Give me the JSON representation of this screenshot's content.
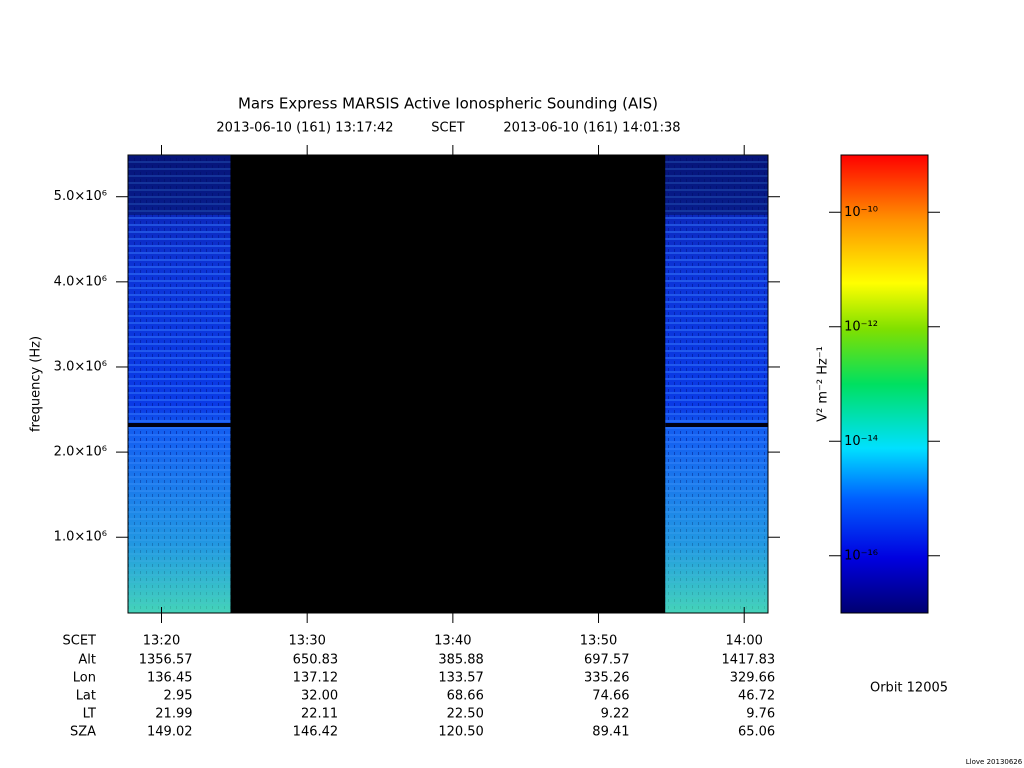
{
  "chart_data": {
    "type": "spectrogram",
    "title": "Mars Express MARSIS Active Ionospheric Sounding (AIS)",
    "start_time": "2013-06-10 (161) 13:17:42",
    "time_system": "SCET",
    "end_time": "2013-06-10 (161) 14:01:38",
    "ylabel": "frequency (Hz)",
    "xlim": [
      "13:17:42",
      "14:01:38"
    ],
    "xticks": [
      "13:20",
      "13:30",
      "13:40",
      "13:50",
      "14:00"
    ],
    "ylim": [
      110000,
      5490000
    ],
    "yticks": [
      {
        "value": 1000000,
        "label": "1.0×10⁶"
      },
      {
        "value": 2000000,
        "label": "2.0×10⁶"
      },
      {
        "value": 3000000,
        "label": "3.0×10⁶"
      },
      {
        "value": 4000000,
        "label": "4.0×10⁶"
      },
      {
        "value": 5000000,
        "label": "5.0×10⁶"
      }
    ],
    "segments": [
      [
        "13:17:42",
        "13:24:44"
      ],
      [
        "13:54:35",
        "14:01:38"
      ]
    ],
    "colorbar": {
      "label": "V² m⁻² Hz⁻¹",
      "log": true,
      "zlim": [
        1e-17,
        1e-09
      ],
      "zticks": [
        {
          "value": 1e-16,
          "label": "10⁻¹⁶"
        },
        {
          "value": 1e-14,
          "label": "10⁻¹⁴"
        },
        {
          "value": 1e-12,
          "label": "10⁻¹²"
        },
        {
          "value": 1e-10,
          "label": "10⁻¹⁰"
        }
      ]
    },
    "ephemeris": {
      "row_label": "SCET",
      "rows": [
        {
          "name": "Alt",
          "values": [
            "1356.57",
            "650.83",
            "385.88",
            "697.57",
            "1417.83"
          ]
        },
        {
          "name": "Lon",
          "values": [
            "136.45",
            "137.12",
            "133.57",
            "335.26",
            "329.66"
          ]
        },
        {
          "name": "Lat",
          "values": [
            "2.95",
            "32.00",
            "68.66",
            "74.66",
            "46.72"
          ]
        },
        {
          "name": "LT",
          "values": [
            "21.99",
            "22.11",
            "22.50",
            "9.22",
            "9.76"
          ]
        },
        {
          "name": "SZA",
          "values": [
            "149.02",
            "146.42",
            "120.50",
            "89.41",
            "65.06"
          ]
        }
      ]
    },
    "orbit": "Orbit 12005",
    "footer": "Llove 20130626"
  }
}
